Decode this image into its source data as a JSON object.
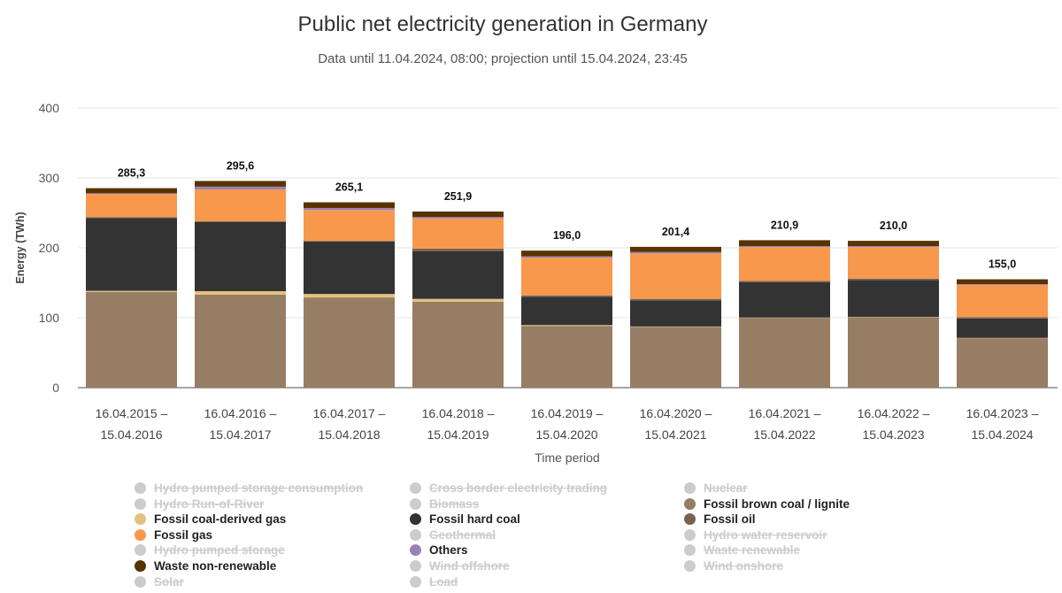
{
  "chart_data": {
    "type": "bar",
    "stacked": true,
    "title": "Public net electricity generation in Germany",
    "subtitle": "Data until 11.04.2024, 08:00; projection until 15.04.2024, 23:45",
    "xlabel": "Time period",
    "ylabel": "Energy (TWh)",
    "ylim": [
      0,
      400
    ],
    "yticks": [
      "0",
      "100",
      "200",
      "300",
      "400"
    ],
    "grid": true,
    "legend_position": "bottom",
    "categories": [
      [
        "16.04.2015 –",
        "15.04.2016"
      ],
      [
        "16.04.2016 –",
        "15.04.2017"
      ],
      [
        "16.04.2017 –",
        "15.04.2018"
      ],
      [
        "16.04.2018 –",
        "15.04.2019"
      ],
      [
        "16.04.2019 –",
        "15.04.2020"
      ],
      [
        "16.04.2020 –",
        "15.04.2021"
      ],
      [
        "16.04.2021 –",
        "15.04.2022"
      ],
      [
        "16.04.2022 –",
        "15.04.2023"
      ],
      [
        "16.04.2023 –",
        "15.04.2024"
      ]
    ],
    "totals": [
      "285,3",
      "295,6",
      "265,1",
      "251,9",
      "196,0",
      "201,4",
      "210,9",
      "210,0",
      "155,0"
    ],
    "series": [
      {
        "name": "Fossil brown coal / lignite",
        "color": "#967d64",
        "values": [
          137,
          133,
          129,
          123,
          88,
          87,
          100,
          101,
          71
        ]
      },
      {
        "name": "Fossil coal-derived gas",
        "color": "#e2c17f",
        "values": [
          1.5,
          5,
          5,
          4,
          1.5,
          0.5,
          0.3,
          0.3,
          0.2
        ]
      },
      {
        "name": "Fossil hard coal",
        "color": "#333333",
        "values": [
          104,
          99,
          75,
          68,
          40.5,
          37.5,
          50.3,
          52.7,
          27.8
        ]
      },
      {
        "name": "Fossil oil",
        "color": "#7a6250",
        "values": [
          1.5,
          1,
          1,
          4,
          2,
          2,
          2,
          2,
          2
        ]
      },
      {
        "name": "Fossil gas",
        "color": "#f8984c",
        "values": [
          33,
          45.5,
          44,
          43,
          54,
          65,
          48.4,
          45,
          46
        ]
      },
      {
        "name": "Others",
        "color": "#9a82b8",
        "values": [
          1,
          4,
          3,
          2,
          2,
          2,
          1.5,
          1.5,
          1
        ]
      },
      {
        "name": "Waste non-renewable",
        "color": "#573300",
        "values": [
          7.3,
          8.1,
          8.1,
          7.9,
          8,
          7.4,
          8.4,
          7.5,
          7
        ]
      }
    ],
    "legend": [
      [
        {
          "label": "Hydro pumped storage consumption",
          "color": "#cccccc",
          "hidden": true
        },
        {
          "label": "Hydro Run-of-River",
          "color": "#cccccc",
          "hidden": true
        },
        {
          "label": "Fossil coal-derived gas",
          "color": "#e2c17f",
          "hidden": false
        },
        {
          "label": "Fossil gas",
          "color": "#f8984c",
          "hidden": false
        },
        {
          "label": "Hydro pumped storage",
          "color": "#cccccc",
          "hidden": true
        },
        {
          "label": "Waste non-renewable",
          "color": "#573300",
          "hidden": false
        },
        {
          "label": "Solar",
          "color": "#cccccc",
          "hidden": true
        }
      ],
      [
        {
          "label": "Cross border electricity trading",
          "color": "#cccccc",
          "hidden": true
        },
        {
          "label": "Biomass",
          "color": "#cccccc",
          "hidden": true
        },
        {
          "label": "Fossil hard coal",
          "color": "#333333",
          "hidden": false
        },
        {
          "label": "Geothermal",
          "color": "#cccccc",
          "hidden": true
        },
        {
          "label": "Others",
          "color": "#9a82b8",
          "hidden": false
        },
        {
          "label": "Wind offshore",
          "color": "#cccccc",
          "hidden": true
        },
        {
          "label": "Load",
          "color": "#cccccc",
          "hidden": true
        }
      ],
      [
        {
          "label": "Nuclear",
          "color": "#cccccc",
          "hidden": true
        },
        {
          "label": "Fossil brown coal / lignite",
          "color": "#967d64",
          "hidden": false
        },
        {
          "label": "Fossil oil",
          "color": "#7a6250",
          "hidden": false
        },
        {
          "label": "Hydro water reservoir",
          "color": "#cccccc",
          "hidden": true
        },
        {
          "label": "Waste renewable",
          "color": "#cccccc",
          "hidden": true
        },
        {
          "label": "Wind onshore",
          "color": "#cccccc",
          "hidden": true
        }
      ]
    ]
  }
}
